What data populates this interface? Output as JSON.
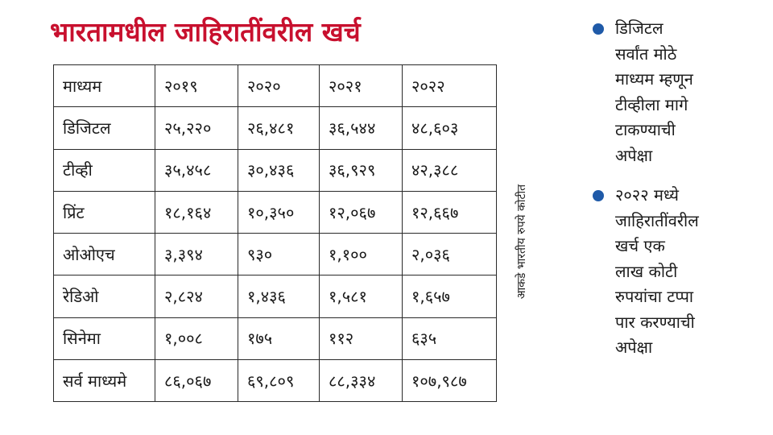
{
  "colors": {
    "title": "#c8102e",
    "bullet_dot": "#1f5aa8",
    "border": "#2a2a2a"
  },
  "title": "भारतामधील जाहिरातींवरील खर्च",
  "table": {
    "headers": [
      "माध्यम",
      "२०१९",
      "२०२०",
      "२०२१",
      "२०२२"
    ],
    "rows": [
      [
        "डिजिटल",
        "२५,२२०",
        "२६,४८१",
        "३६,५४४",
        "४८,६०३"
      ],
      [
        "टीव्ही",
        "३५,४५८",
        "३०,४३६",
        "३६,९२९",
        "४२,३८८"
      ],
      [
        "प्रिंट",
        "१८,१६४",
        "१०,३५०",
        "१२,०६७",
        "१२,६६७"
      ],
      [
        "ओओएच",
        "३,३९४",
        "९३०",
        "१,१००",
        "२,०३६"
      ],
      [
        "रेडिओ",
        "२,८२४",
        "१,४३६",
        "१,५८१",
        "१,६५७"
      ],
      [
        "सिनेमा",
        "१,००८",
        "१७५",
        "११२",
        "६३५"
      ],
      [
        "सर्व माध्यमे",
        "८६,०६७",
        "६९,८०९",
        "८८,३३४",
        "१०७,९८७"
      ]
    ]
  },
  "unit_note": "आकडे भारतीय रुपये कोटीत",
  "bullets": [
    {
      "lines": [
        "डिजिटल",
        "सर्वांत मोठे",
        "माध्यम म्हणून",
        "टीव्हीला मागे",
        "टाकण्याची",
        "अपेक्षा"
      ]
    },
    {
      "lines": [
        "२०२२ मध्ये",
        "जाहिरातींवरील",
        "खर्च एक",
        "लाख कोटी",
        "रुपयांचा टप्पा",
        "पार करण्याची",
        "अपेक्षा"
      ]
    }
  ]
}
